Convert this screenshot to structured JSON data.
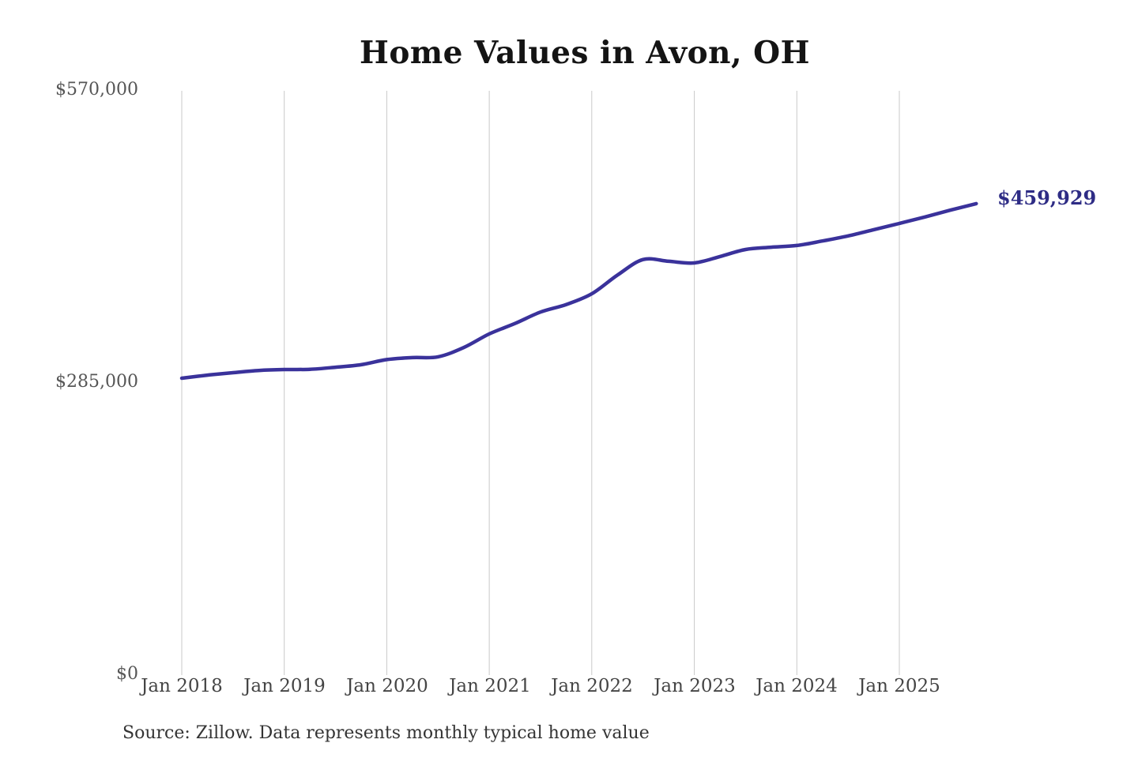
{
  "chart_data": {
    "type": "line",
    "title": "Home Values in Avon, OH",
    "source_note": "Source: Zillow. Data represents monthly typical home value",
    "end_label": "$459,929",
    "end_value": 459929,
    "xlabel": "",
    "ylabel": "",
    "ylim": [
      0,
      570000
    ],
    "x_range_years": [
      2018.0,
      2025.75
    ],
    "grid": "vertical-only",
    "legend": "none",
    "line_color": "#3a329b",
    "grid_color": "#c9c9c9",
    "end_label_color": "#2e2c85",
    "background_color": "#ffffff",
    "y_ticks": [
      {
        "label": "$570,000",
        "value": 570000
      },
      {
        "label": "$285,000",
        "value": 285000
      },
      {
        "label": "$0",
        "value": 0
      }
    ],
    "x_ticks": [
      {
        "label": "Jan 2018",
        "value": 2018
      },
      {
        "label": "Jan 2019",
        "value": 2019
      },
      {
        "label": "Jan 2020",
        "value": 2020
      },
      {
        "label": "Jan 2021",
        "value": 2021
      },
      {
        "label": "Jan 2022",
        "value": 2022
      },
      {
        "label": "Jan 2023",
        "value": 2023
      },
      {
        "label": "Jan 2024",
        "value": 2024
      },
      {
        "label": "Jan 2025",
        "value": 2025
      }
    ],
    "series": [
      {
        "name": "Monthly typical home value",
        "points": [
          {
            "t": 2018.0,
            "date": "Jan 2018",
            "value": 289600
          },
          {
            "t": 2018.25,
            "date": "Apr 2018",
            "value": 292600
          },
          {
            "t": 2018.5,
            "date": "Jul 2018",
            "value": 295000
          },
          {
            "t": 2018.75,
            "date": "Oct 2018",
            "value": 297200
          },
          {
            "t": 2019.0,
            "date": "Jan 2019",
            "value": 298100
          },
          {
            "t": 2019.25,
            "date": "Apr 2019",
            "value": 298300
          },
          {
            "t": 2019.5,
            "date": "Jul 2019",
            "value": 300300
          },
          {
            "t": 2019.75,
            "date": "Oct 2019",
            "value": 302800
          },
          {
            "t": 2020.0,
            "date": "Jan 2020",
            "value": 307800
          },
          {
            "t": 2020.25,
            "date": "Apr 2020",
            "value": 309700
          },
          {
            "t": 2020.5,
            "date": "Jul 2020",
            "value": 310500
          },
          {
            "t": 2020.75,
            "date": "Oct 2020",
            "value": 319500
          },
          {
            "t": 2021.0,
            "date": "Jan 2021",
            "value": 332800
          },
          {
            "t": 2021.25,
            "date": "Apr 2021",
            "value": 343000
          },
          {
            "t": 2021.5,
            "date": "Jul 2021",
            "value": 354200
          },
          {
            "t": 2021.75,
            "date": "Oct 2021",
            "value": 361500
          },
          {
            "t": 2022.0,
            "date": "Jan 2022",
            "value": 372000
          },
          {
            "t": 2022.25,
            "date": "Apr 2022",
            "value": 390200
          },
          {
            "t": 2022.5,
            "date": "Jul 2022",
            "value": 405400
          },
          {
            "t": 2022.75,
            "date": "Oct 2022",
            "value": 403700
          },
          {
            "t": 2023.0,
            "date": "Jan 2023",
            "value": 402100
          },
          {
            "t": 2023.25,
            "date": "Apr 2023",
            "value": 408300
          },
          {
            "t": 2023.5,
            "date": "Jul 2023",
            "value": 415200
          },
          {
            "t": 2023.75,
            "date": "Oct 2023",
            "value": 417400
          },
          {
            "t": 2024.0,
            "date": "Jan 2024",
            "value": 419100
          },
          {
            "t": 2024.25,
            "date": "Apr 2024",
            "value": 423500
          },
          {
            "t": 2024.5,
            "date": "Jul 2024",
            "value": 428400
          },
          {
            "t": 2024.75,
            "date": "Oct 2024",
            "value": 434500
          },
          {
            "t": 2025.0,
            "date": "Jan 2025",
            "value": 440600
          },
          {
            "t": 2025.25,
            "date": "Apr 2025",
            "value": 446900
          },
          {
            "t": 2025.5,
            "date": "Jul 2025",
            "value": 453600
          },
          {
            "t": 2025.75,
            "date": "Oct 2025",
            "value": 459929
          }
        ]
      }
    ]
  }
}
